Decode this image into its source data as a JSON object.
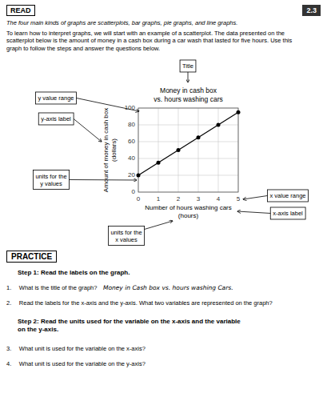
{
  "chart_data": {
    "type": "line",
    "title": "Money in cash box\nvs. hours washing cars",
    "xlabel": "Number of hours washing cars\n(hours)",
    "ylabel": "Amount of money in cash box\n(dollars)",
    "x": [
      0,
      1,
      2,
      3,
      4,
      5
    ],
    "values": [
      20,
      35,
      50,
      65,
      80,
      95
    ],
    "color": "black",
    "marker": "circle",
    "xlim": [
      0,
      5
    ],
    "ylim": [
      0,
      100
    ],
    "xticks": [
      0,
      1,
      2,
      3,
      4,
      5
    ],
    "yticks": [
      0,
      20,
      40,
      60,
      80,
      100
    ],
    "grid": true,
    "annotations": [
      "Title",
      "y value range",
      "y-axis label",
      "units for the\ny values",
      "x value range",
      "x-axis label",
      "units for the\nx values"
    ]
  },
  "page": {
    "read_label": "READ",
    "section_number": "2.3",
    "para1": "The four main kinds of graphs are scatterplots, bar graphs, pie graphs, and line graphs.",
    "para2": "To learn how to interpret graphs, we will start with an example of a scatterplot. The data presented on the\nscatterplot below is the amount of money in a cash box during a car wash that lasted for five hours. Use this\ngraph to follow the steps and answer the questions below.",
    "practice_header": "PRACTICE",
    "step1_label": "Step 1:",
    "step1": "Read the labels on the graph.",
    "q1_prefix": "1.  What is the title of the graph? ",
    "q1_answer": "Money in Cash box vs. hours washing Cars.",
    "q2": "2.  Read the labels for the x-axis and the y-axis. What two variables are represented on the graph?",
    "step2_label": "Step 2:",
    "step2": "Read the units used for the variable on the x-axis and the variable\n       on the y-axis.",
    "q3": "3.  What unit is used for the variable on the x-axis?",
    "q4": "4.  What unit is used for the variable on the y-axis?"
  }
}
